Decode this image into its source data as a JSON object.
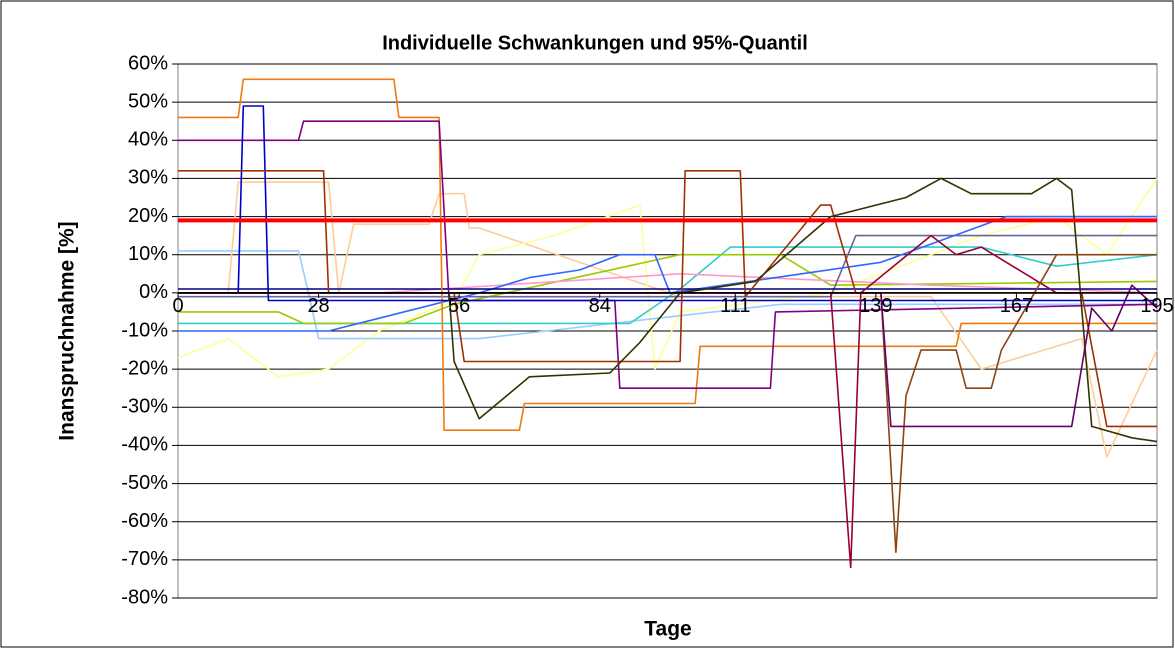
{
  "chart_data": {
    "type": "line",
    "title": "Individuelle Schwankungen und 95%-Quantil",
    "xlabel": "Tage",
    "ylabel": "Inanspruchnahme [%]",
    "xlim": [
      0,
      195
    ],
    "xticks": [
      0,
      28,
      56,
      84,
      111,
      139,
      167,
      195
    ],
    "ylim": [
      -80,
      60
    ],
    "yticks": [
      {
        "value": -80,
        "label": "-80%"
      },
      {
        "value": -70,
        "label": "-70%"
      },
      {
        "value": -60,
        "label": "-60%"
      },
      {
        "value": -50,
        "label": "-50%"
      },
      {
        "value": -40,
        "label": "-40%"
      },
      {
        "value": -30,
        "label": "-30%"
      },
      {
        "value": -20,
        "label": "-20%"
      },
      {
        "value": -10,
        "label": "-10%"
      },
      {
        "value": 0,
        "label": "0%"
      },
      {
        "value": 10,
        "label": "10%"
      },
      {
        "value": 20,
        "label": "20%"
      },
      {
        "value": 30,
        "label": "30%"
      },
      {
        "value": 40,
        "label": "40%"
      },
      {
        "value": 50,
        "label": "50%"
      },
      {
        "value": 60,
        "label": "60%"
      }
    ],
    "grid": true,
    "series": [
      {
        "color": "#ffcc99",
        "x": [
          0,
          10,
          12,
          30,
          32,
          35,
          50,
          52,
          57,
          58,
          60,
          100,
          150,
          160,
          180,
          185,
          195
        ],
        "values": [
          0,
          0,
          29,
          29,
          0,
          18,
          18,
          26,
          26,
          17,
          17,
          -1,
          -1,
          -20,
          -12,
          -43,
          -15
        ]
      },
      {
        "color": "#ffff99",
        "x": [
          0,
          10,
          20,
          30,
          40,
          55,
          60,
          75,
          92,
          95,
          100,
          130,
          160,
          175,
          185,
          195
        ],
        "values": [
          -17,
          -12,
          -22,
          -20,
          -10,
          -2,
          10,
          15,
          23,
          -20,
          -5,
          0,
          15,
          20,
          10,
          30
        ]
      },
      {
        "color": "#99ccff",
        "x": [
          0,
          24,
          26,
          28,
          60,
          120,
          195
        ],
        "values": [
          11,
          11,
          0,
          -12,
          -12,
          -3,
          -3
        ]
      },
      {
        "color": "#33cccc",
        "x": [
          0,
          90,
          100,
          110,
          160,
          175,
          195
        ],
        "values": [
          -8,
          -8,
          1,
          12,
          12,
          7,
          10
        ]
      },
      {
        "color": "#99cc00",
        "x": [
          0,
          20,
          25,
          45,
          55,
          100,
          120,
          130,
          195
        ],
        "values": [
          -5,
          -5,
          -8,
          -8,
          -3,
          10,
          10,
          2,
          3
        ]
      },
      {
        "color": "#ff99cc",
        "x": [
          0,
          40,
          100,
          150,
          195
        ],
        "values": [
          0,
          0,
          5,
          2,
          0
        ]
      },
      {
        "color": "#666699",
        "x": [
          0,
          130,
          135,
          195
        ],
        "values": [
          -1,
          -1,
          15,
          15
        ]
      },
      {
        "color": "#3366ff",
        "x": [
          0,
          30,
          60,
          70,
          80,
          88,
          95,
          98,
          140,
          165,
          195
        ],
        "values": [
          -10,
          -10,
          0,
          4,
          6,
          10,
          10,
          0,
          8,
          20,
          20
        ]
      },
      {
        "color": "#000080",
        "x": [
          0,
          195
        ],
        "values": [
          1,
          1
        ]
      },
      {
        "color": "#f07a10",
        "x": [
          0,
          12,
          13,
          43,
          44,
          52,
          53,
          68,
          69,
          103,
          104,
          155,
          156,
          195
        ],
        "values": [
          46,
          46,
          56,
          56,
          46,
          46,
          -36,
          -36,
          -29,
          -29,
          -14,
          -14,
          -8,
          -8
        ]
      },
      {
        "color": "#800080",
        "x": [
          0,
          24,
          25,
          52,
          54,
          87,
          88,
          118,
          119,
          195
        ],
        "values": [
          40,
          40,
          45,
          45,
          -2,
          -2,
          -25,
          -25,
          -5,
          -3
        ]
      },
      {
        "color": "#0000cc",
        "x": [
          0,
          12,
          13,
          17,
          18,
          195
        ],
        "values": [
          0,
          0,
          49,
          49,
          -2,
          -2
        ]
      },
      {
        "color": "#a03000",
        "x": [
          0,
          29,
          30,
          55,
          57,
          90,
          100,
          101,
          112,
          113,
          128,
          130,
          135,
          180,
          185,
          195
        ],
        "values": [
          32,
          32,
          0,
          0,
          -18,
          -18,
          -18,
          32,
          32,
          -1,
          23,
          23,
          0,
          0,
          -35,
          -35
        ]
      },
      {
        "color": "#333300",
        "x": [
          0,
          54,
          55,
          60,
          70,
          86,
          92,
          100,
          115,
          130,
          145,
          152,
          158,
          170,
          175,
          178,
          182,
          190,
          195
        ],
        "values": [
          0,
          0,
          -18,
          -33,
          -22,
          -21,
          -13,
          0,
          3,
          20,
          25,
          30,
          26,
          26,
          30,
          27,
          -35,
          -38,
          -39
        ]
      },
      {
        "color": "#990033",
        "x": [
          0,
          130,
          134,
          136,
          150,
          155,
          160,
          175,
          195
        ],
        "values": [
          0,
          0,
          -72,
          0,
          15,
          10,
          12,
          0,
          0
        ]
      },
      {
        "color": "#8b4513",
        "x": [
          0,
          140,
          143,
          145,
          148,
          155,
          157,
          162,
          164,
          175,
          195
        ],
        "values": [
          0,
          0,
          -68,
          -27,
          -15,
          -15,
          -25,
          -25,
          -15,
          10,
          10
        ]
      },
      {
        "color": "#660066",
        "x": [
          0,
          140,
          142,
          178,
          182,
          186,
          190,
          195
        ],
        "values": [
          0,
          0,
          -35,
          -35,
          -4,
          -10,
          2,
          -4
        ]
      },
      {
        "color": "#ff0000",
        "width": 4,
        "x": [
          0,
          195
        ],
        "values": [
          19,
          19
        ]
      }
    ]
  }
}
